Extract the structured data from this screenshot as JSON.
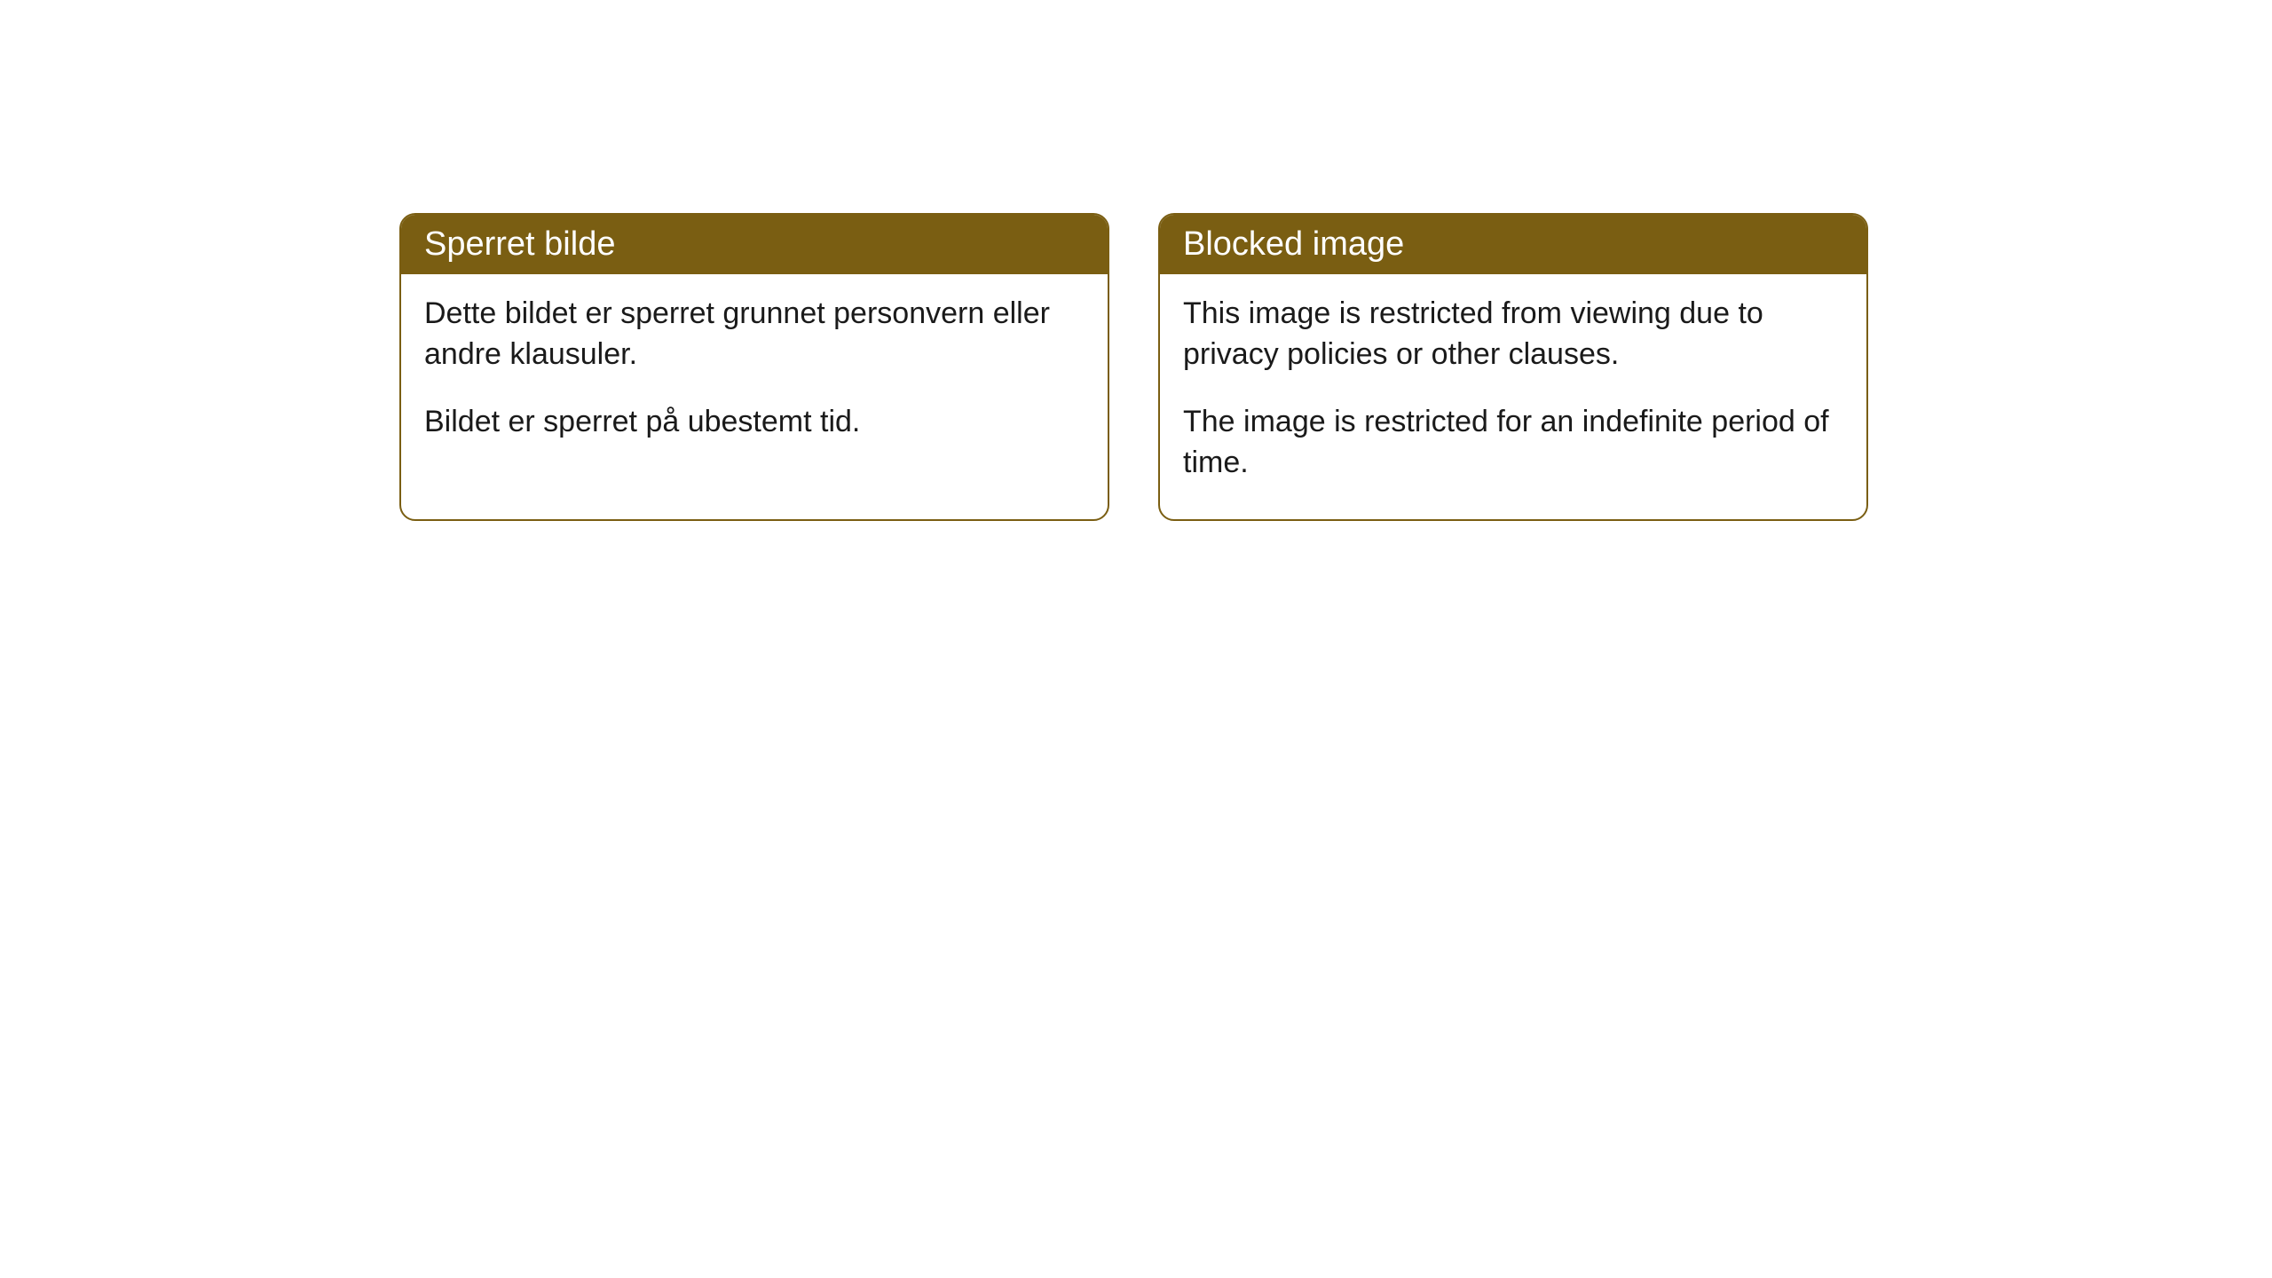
{
  "cards": [
    {
      "title": "Sperret bilde",
      "para1": "Dette bildet er sperret grunnet personvern eller andre klausuler.",
      "para2": "Bildet er sperret på ubestemt tid."
    },
    {
      "title": "Blocked image",
      "para1": "This image is restricted from viewing due to privacy policies or other clauses.",
      "para2": "The image is restricted for an indefinite period of time."
    }
  ],
  "styling": {
    "header_bg": "#7a5e12",
    "header_text_color": "#ffffff",
    "border_color": "#7a5e12",
    "body_text_color": "#1a1a1a",
    "card_bg": "#ffffff",
    "page_bg": "#ffffff",
    "border_radius": 18,
    "header_fontsize": 38,
    "body_fontsize": 34
  }
}
